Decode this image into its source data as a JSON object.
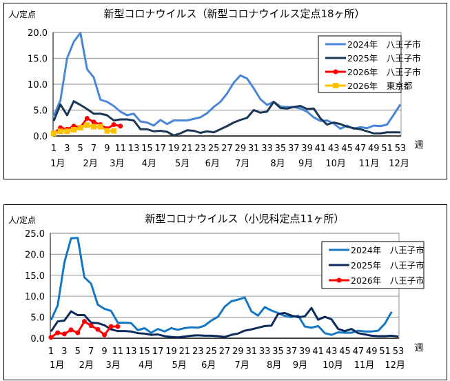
{
  "chart_data": [
    {
      "type": "line",
      "title": "新型コロナウイルス（新型コロナウイルス定点18ヶ所）",
      "ylabel": "人/定点",
      "xlabel": "週",
      "ylim": [
        0,
        20
      ],
      "yticks": [
        "0.0",
        "5.0",
        "10.0",
        "15.0",
        "20.0"
      ],
      "grid": true,
      "legend": "top-right",
      "x_ticks": [
        1,
        3,
        5,
        7,
        9,
        11,
        13,
        15,
        17,
        19,
        21,
        23,
        25,
        27,
        29,
        31,
        33,
        35,
        37,
        39,
        41,
        43,
        45,
        47,
        49,
        51,
        53
      ],
      "months": [
        {
          "label": "1月",
          "week": 1.6
        },
        {
          "label": "2月",
          "week": 6.5
        },
        {
          "label": "3月",
          "week": 10.5
        },
        {
          "label": "4月",
          "week": 15.3
        },
        {
          "label": "5月",
          "week": 20.3
        },
        {
          "label": "6月",
          "week": 24.8
        },
        {
          "label": "7月",
          "week": 29.3
        },
        {
          "label": "8月",
          "week": 34.6
        },
        {
          "label": "9月",
          "week": 38.8
        },
        {
          "label": "10月",
          "week": 43.3
        },
        {
          "label": "11月",
          "week": 48.3
        },
        {
          "label": "12月",
          "week": 52.8
        }
      ],
      "series": [
        {
          "name": "2024年　八王子市",
          "color": "#4a86d8",
          "marker": "none",
          "values": [
            3.9,
            6.9,
            15,
            18.2,
            19.9,
            12.9,
            11.3,
            7,
            6.6,
            5.8,
            4.7,
            4,
            4.3,
            2.8,
            2.6,
            2,
            3.1,
            2.3,
            3,
            3,
            3,
            3.3,
            3.6,
            4.4,
            5.6,
            6.6,
            8.2,
            10.3,
            11.7,
            11.1,
            9.2,
            7.1,
            6,
            6.6,
            5.7,
            5.6,
            5.6,
            5.3,
            4.7,
            3.6,
            2.9,
            3,
            2.4,
            1.4,
            2,
            1.4,
            1.7,
            1.5,
            2,
            1.9,
            2.2,
            4.1,
            6.1
          ]
        },
        {
          "name": "2025年　八王子市",
          "color": "#1b3654",
          "marker": "none",
          "values": [
            2.9,
            6.1,
            4,
            6.7,
            6,
            5.2,
            4.3,
            4.3,
            4,
            3,
            3.2,
            3.2,
            3,
            1.3,
            1.3,
            0.9,
            1,
            0.8,
            0.1,
            0.5,
            1.1,
            1,
            0.6,
            0.9,
            0.7,
            1.3,
            1.9,
            2.6,
            3.1,
            3.5,
            5,
            4.5,
            4.7,
            6.6,
            5.4,
            5.3,
            5.6,
            5.8,
            5.2,
            5.3,
            3.4,
            2.2,
            2.6,
            2.3,
            1.8,
            1.5,
            1.3,
            0.9,
            0.5,
            0.5,
            0.7,
            0.7,
            0.7
          ]
        },
        {
          "name": "2026年　八王子市",
          "color": "#ff0000",
          "marker": "circle",
          "values": [
            0.5,
            1.6,
            1.3,
            1.9,
            1.7,
            3.4,
            2.7,
            2.2,
            1.4,
            2.2,
            1.9
          ]
        },
        {
          "name": "2026年　東京都",
          "color": "#ffc000",
          "marker": "square",
          "values": [
            0.5,
            0.9,
            0.9,
            1.2,
            1.6,
            2.1,
            1.8,
            1.8,
            1.0,
            1.0
          ]
        }
      ]
    },
    {
      "type": "line",
      "title": "新型コロナウイルス（小児科定点11ヶ所）",
      "ylabel": "人/定点",
      "xlabel": "週",
      "ylim": [
        0,
        25
      ],
      "yticks": [
        "0.0",
        "5.0",
        "10.0",
        "15.0",
        "20.0",
        "25.0"
      ],
      "grid": true,
      "legend": "top-right",
      "x_ticks": [
        1,
        3,
        5,
        7,
        9,
        11,
        13,
        15,
        17,
        19,
        21,
        23,
        25,
        27,
        29,
        31,
        33,
        35,
        37,
        39,
        41,
        43,
        45,
        47,
        49,
        51,
        53
      ],
      "months": [
        {
          "label": "1月",
          "week": 1.9
        },
        {
          "label": "2月",
          "week": 6.3
        },
        {
          "label": "3月",
          "week": 10.3
        },
        {
          "label": "4月",
          "week": 15.2
        },
        {
          "label": "5月",
          "week": 20.2
        },
        {
          "label": "6月",
          "week": 24.6
        },
        {
          "label": "7月",
          "week": 29.6
        },
        {
          "label": "8月",
          "week": 34.4
        },
        {
          "label": "9月",
          "week": 38.3
        },
        {
          "label": "10月",
          "week": 43.2
        },
        {
          "label": "11月",
          "week": 47.9
        },
        {
          "label": "12月",
          "week": 52.5
        }
      ],
      "series": [
        {
          "name": "2024年　八王子市",
          "color": "#1576c4",
          "marker": "none",
          "values": [
            4.3,
            7.8,
            18,
            23.8,
            23.9,
            14.5,
            13,
            8,
            7,
            6.5,
            3.7,
            3.7,
            3.6,
            1.9,
            2.4,
            1.3,
            2.2,
            1.6,
            2.4,
            2,
            2.4,
            2.6,
            2.5,
            3,
            4.2,
            5.1,
            7.5,
            8.8,
            9.2,
            9.7,
            6.4,
            5.4,
            7.4,
            6.6,
            6,
            5.3,
            5,
            5.4,
            2.8,
            2.5,
            2.9,
            1.2,
            0.8,
            1.4,
            1.3,
            1.3,
            1.8,
            1.6,
            1.6,
            1.8,
            3.5,
            6.3
          ]
        },
        {
          "name": "2025年　八王子市",
          "color": "#0d2a5c",
          "marker": "none",
          "values": [
            1.6,
            4,
            4.2,
            6.4,
            5.5,
            5.5,
            3.7,
            3.6,
            3.1,
            2.1,
            1.7,
            1.7,
            1.6,
            1.2,
            1.1,
            0.8,
            0.9,
            0.5,
            0.3,
            0.2,
            0.4,
            0.6,
            0.7,
            0.6,
            0.6,
            0.5,
            0.3,
            0.8,
            1.1,
            1.8,
            2.1,
            2.5,
            2.9,
            3,
            5.8,
            6,
            5.4,
            5,
            5.2,
            7.2,
            4.4,
            5.1,
            4.5,
            2.2,
            1.7,
            2.2,
            1.2,
            0.9,
            0.6,
            0.5,
            0.5,
            0.6,
            0.4
          ]
        },
        {
          "name": "2026年　八王子市",
          "color": "#ff0000",
          "marker": "circle",
          "values": [
            0.2,
            1.3,
            1,
            2,
            1.3,
            4,
            3,
            2.1,
            0.8,
            2.8,
            2.8
          ]
        }
      ]
    }
  ]
}
